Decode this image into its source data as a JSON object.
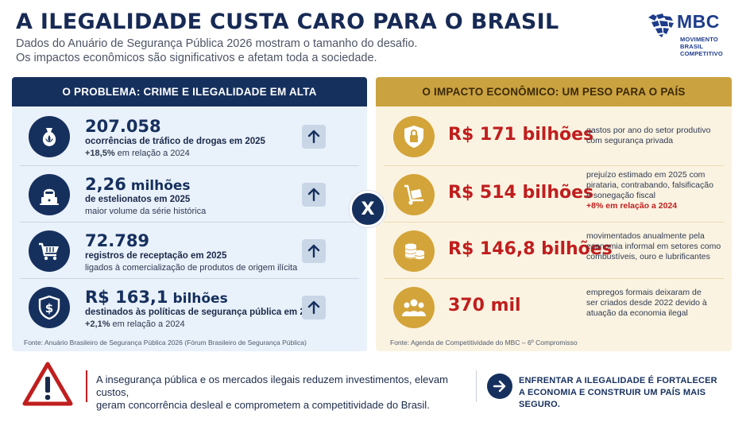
{
  "header": {
    "title": "A ILEGALIDADE CUSTA CARO PARA O BRASIL",
    "subtitle_line1": "Dados do Anuário de Segurança Pública 2026 mostram o tamanho do desafio.",
    "subtitle_line2": "Os impactos econômicos são significativos e afetam toda a sociedade."
  },
  "logo": {
    "name": "MBC",
    "sub_line1": "MOVIMENTO BRASIL",
    "sub_line2": "COMPETITIVO",
    "color": "#1d3c8a"
  },
  "left_panel": {
    "heading": "O PROBLEMA: CRIME E ILEGALIDADE EM ALTA",
    "items": [
      {
        "icon": "money-bag-leaf-icon",
        "value": "207.058",
        "unit": "",
        "line1": "ocorrências de tráfico de drogas em 2025",
        "line2_bold": "+18,5%",
        "line2": " em relação a 2024"
      },
      {
        "icon": "hacker-laptop-icon",
        "value": "2,26",
        "unit": " milhões",
        "line1": "de estelionatos em 2025",
        "line2_bold": "",
        "line2": "maior volume da série histórica"
      },
      {
        "icon": "shopping-cart-icon",
        "value": "72.789",
        "unit": "",
        "line1": "registros de receptação em 2025",
        "line2_bold": "",
        "line2": "ligados à comercialização de produtos de origem ilícita"
      },
      {
        "icon": "shield-dollar-icon",
        "value": "R$ 163,1",
        "unit": " bilhões",
        "line1": "destinados às políticas de segurança pública em 2025",
        "line2_bold": "+2,1%",
        "line2": " em relação a 2024"
      }
    ],
    "source": "Fonte: Anuário Brasileiro de Segurança Pública 2026 (Fórum Brasileiro de Segurança Pública)"
  },
  "versus_label": "X",
  "right_panel": {
    "heading": "O IMPACTO ECONÔMICO: UM PESO PARA O PAÍS",
    "items": [
      {
        "icon": "shield-lock-icon",
        "value": "R$ 171 bilhões",
        "desc": [
          "gastos por ano do setor produtivo",
          "com segurança privada"
        ],
        "extra_bold": "",
        "extra": ""
      },
      {
        "icon": "hand-truck-icon",
        "value": "R$ 514 bilhões",
        "desc": [
          "prejuízo estimado em 2025 com",
          "pirataria, contrabando, falsificação",
          "e sonegação fiscal"
        ],
        "extra_bold": "+8%",
        "extra": " em relação a 2024"
      },
      {
        "icon": "coins-stack-icon",
        "value": "R$ 146,8 bilhões",
        "desc": [
          "movimentados anualmente pela",
          "economia informal em setores como",
          "combustíveis, ouro e lubrificantes"
        ],
        "extra_bold": "",
        "extra": ""
      },
      {
        "icon": "people-group-icon",
        "value": "370 mil",
        "desc": [
          "empregos formais deixaram de",
          "ser criados desde 2022 devido à",
          "atuação da economia ilegal"
        ],
        "extra_bold": "",
        "extra": ""
      }
    ],
    "source": "Fonte: Agenda de Competitividade do MBC – 6º Compromisso"
  },
  "footer": {
    "warning_icon": "warning-triangle-icon",
    "text_line1": "A insegurança pública e os mercados ilegais reduzem investimentos, elevam custos,",
    "text_line2": "geram concorrência desleal e comprometem a competitividade do Brasil.",
    "cta_icon": "arrow-right-icon",
    "cta_line1": "ENFRENTAR A ILEGALIDADE É FORTALECER",
    "cta_line2": "A ECONOMIA E CONSTRUIR UM PAÍS MAIS SEGURO."
  },
  "colors": {
    "navy": "#16305e",
    "gold": "#caa240",
    "red": "#c01e1e"
  }
}
